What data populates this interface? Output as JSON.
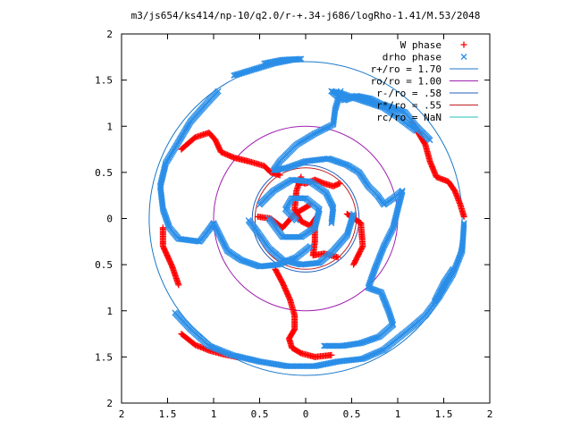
{
  "chart_data": {
    "type": "scatter",
    "title": "m3/js654/ks414/np-10/q2.0/r-+.34-j686/logRho-1.41/M.53/2048",
    "xlabel": "",
    "ylabel": "",
    "xlim": [
      -2,
      2
    ],
    "ylim": [
      -2,
      2
    ],
    "x_ticks": [
      "2",
      "1.5",
      "1",
      "0.5",
      "0",
      "0.5",
      "1",
      "1.5",
      "2"
    ],
    "y_ticks": [
      "2",
      "1.5",
      "1",
      "0.5",
      "0",
      "0.5",
      "1",
      "1.5",
      "2"
    ],
    "grid": false,
    "legend_position": "top-right",
    "point_series": [
      {
        "name": "W phase",
        "marker": "+",
        "color": "#ff0000",
        "arms": [
          [
            [
              -1.35,
              0.75
            ],
            [
              -1.2,
              0.88
            ],
            [
              -1.05,
              0.93
            ],
            [
              -0.98,
              0.85
            ],
            [
              -0.92,
              0.72
            ],
            [
              -0.78,
              0.66
            ],
            [
              -0.62,
              0.62
            ],
            [
              -0.45,
              0.57
            ],
            [
              -0.38,
              0.5
            ],
            [
              -0.28,
              0.47
            ]
          ],
          [
            [
              -0.1,
              0.4
            ],
            [
              0.0,
              0.38
            ],
            [
              0.1,
              0.42
            ],
            [
              0.2,
              0.38
            ],
            [
              0.3,
              0.35
            ],
            [
              0.37,
              0.38
            ]
          ],
          [
            [
              1.15,
              1.05
            ],
            [
              1.3,
              0.8
            ],
            [
              1.35,
              0.62
            ],
            [
              1.42,
              0.45
            ],
            [
              1.55,
              0.4
            ],
            [
              1.62,
              0.3
            ],
            [
              1.68,
              0.15
            ],
            [
              1.72,
              0.02
            ]
          ],
          [
            [
              -0.33,
              -0.55
            ],
            [
              -0.25,
              -0.7
            ],
            [
              -0.17,
              -0.88
            ],
            [
              -0.12,
              -1.05
            ],
            [
              -0.12,
              -1.2
            ],
            [
              -0.18,
              -1.3
            ],
            [
              -0.15,
              -1.4
            ],
            [
              -0.05,
              -1.46
            ],
            [
              0.1,
              -1.5
            ],
            [
              0.28,
              -1.48
            ]
          ],
          [
            [
              -1.35,
              -1.25
            ],
            [
              -1.2,
              -1.37
            ],
            [
              -1.05,
              -1.43
            ],
            [
              -0.9,
              -1.47
            ],
            [
              -0.75,
              -1.5
            ]
          ],
          [
            [
              -0.05,
              0.45
            ],
            [
              -0.1,
              0.3
            ],
            [
              -0.12,
              0.1
            ],
            [
              -0.05,
              -0.03
            ],
            [
              0.05,
              -0.08
            ],
            [
              0.12,
              0.02
            ]
          ],
          [
            [
              -0.52,
              0.02
            ],
            [
              -0.38,
              0.0
            ],
            [
              -0.25,
              -0.1
            ],
            [
              -0.12,
              0.05
            ],
            [
              0.05,
              0.15
            ]
          ],
          [
            [
              0.1,
              -0.05
            ],
            [
              0.1,
              -0.25
            ],
            [
              0.08,
              -0.4
            ],
            [
              0.2,
              -0.38
            ],
            [
              0.35,
              -0.42
            ]
          ],
          [
            [
              -1.55,
              -0.1
            ],
            [
              -1.55,
              -0.3
            ],
            [
              -1.45,
              -0.52
            ],
            [
              -1.38,
              -0.72
            ]
          ],
          [
            [
              0.45,
              0.05
            ],
            [
              0.6,
              -0.05
            ],
            [
              0.62,
              -0.3
            ],
            [
              0.52,
              -0.5
            ]
          ]
        ]
      },
      {
        "name": "drho phase",
        "marker": "x",
        "color": "#2a8ee8",
        "arms": [
          [
            [
              -0.45,
              1.68
            ],
            [
              -0.25,
              1.72
            ],
            [
              -0.05,
              1.73
            ]
          ],
          [
            [
              -0.95,
              1.38
            ],
            [
              -1.1,
              1.22
            ],
            [
              -1.25,
              1.05
            ],
            [
              -1.4,
              0.8
            ],
            [
              -1.52,
              0.6
            ],
            [
              -1.58,
              0.35
            ],
            [
              -1.55,
              0.1
            ],
            [
              -1.48,
              -0.1
            ],
            [
              -1.38,
              -0.22
            ],
            [
              -1.15,
              -0.25
            ],
            [
              -1.05,
              -0.12
            ],
            [
              -1.0,
              -0.05
            ]
          ],
          [
            [
              -0.78,
              1.55
            ],
            [
              -0.55,
              1.62
            ],
            [
              -0.35,
              1.68
            ],
            [
              -0.15,
              1.72
            ]
          ],
          [
            [
              0.38,
              1.38
            ],
            [
              0.32,
              1.18
            ],
            [
              0.3,
              1.02
            ],
            [
              0.1,
              0.92
            ],
            [
              -0.1,
              0.8
            ],
            [
              -0.28,
              0.62
            ],
            [
              -0.35,
              0.52
            ],
            [
              -0.2,
              0.55
            ],
            [
              0.0,
              0.62
            ],
            [
              0.25,
              0.65
            ],
            [
              0.45,
              0.58
            ],
            [
              0.58,
              0.5
            ],
            [
              0.68,
              0.35
            ],
            [
              0.78,
              0.25
            ],
            [
              0.85,
              0.15
            ],
            [
              0.95,
              0.22
            ],
            [
              1.05,
              0.3
            ]
          ],
          [
            [
              0.28,
              1.38
            ],
            [
              0.35,
              1.32
            ],
            [
              0.42,
              1.28
            ],
            [
              0.55,
              1.33
            ],
            [
              0.7,
              1.3
            ],
            [
              0.82,
              1.24
            ],
            [
              0.95,
              1.2
            ],
            [
              1.08,
              1.15
            ],
            [
              1.2,
              1.0
            ],
            [
              1.35,
              0.85
            ]
          ],
          [
            [
              0.28,
              1.38
            ],
            [
              0.4,
              1.35
            ],
            [
              0.55,
              1.3
            ],
            [
              0.7,
              1.25
            ],
            [
              0.85,
              1.2
            ],
            [
              1.0,
              1.1
            ],
            [
              1.2,
              0.95
            ]
          ],
          [
            [
              1.72,
              -0.05
            ],
            [
              1.7,
              -0.35
            ],
            [
              1.6,
              -0.6
            ],
            [
              1.45,
              -0.85
            ],
            [
              1.3,
              -1.05
            ],
            [
              1.15,
              -1.18
            ],
            [
              1.0,
              -1.3
            ],
            [
              0.85,
              -1.42
            ],
            [
              0.62,
              -1.52
            ],
            [
              0.35,
              -1.55
            ],
            [
              0.1,
              -1.6
            ],
            [
              -0.2,
              -1.6
            ],
            [
              -0.5,
              -1.55
            ],
            [
              -0.8,
              -1.48
            ],
            [
              -1.05,
              -1.38
            ],
            [
              -1.25,
              -1.2
            ],
            [
              -1.42,
              -1.02
            ]
          ],
          [
            [
              1.05,
              0.3
            ],
            [
              0.95,
              -0.1
            ],
            [
              0.85,
              -0.3
            ],
            [
              0.75,
              -0.55
            ],
            [
              0.68,
              -0.75
            ],
            [
              0.82,
              -0.8
            ],
            [
              0.9,
              -1.0
            ],
            [
              0.95,
              -1.15
            ],
            [
              0.8,
              -1.28
            ],
            [
              0.6,
              -1.35
            ],
            [
              0.4,
              -1.38
            ],
            [
              0.2,
              -1.38
            ]
          ],
          [
            [
              -1.0,
              -0.05
            ],
            [
              -0.95,
              -0.15
            ],
            [
              -0.85,
              -0.35
            ],
            [
              -0.7,
              -0.45
            ],
            [
              -0.5,
              -0.52
            ],
            [
              -0.3,
              -0.5
            ],
            [
              -0.1,
              -0.42
            ],
            [
              0.05,
              -0.3
            ]
          ],
          [
            [
              -0.62,
              -0.02
            ],
            [
              -0.52,
              -0.15
            ],
            [
              -0.4,
              -0.32
            ],
            [
              -0.25,
              -0.45
            ],
            [
              -0.05,
              -0.5
            ],
            [
              0.15,
              -0.48
            ],
            [
              0.3,
              -0.35
            ],
            [
              0.45,
              -0.18
            ],
            [
              0.52,
              0.05
            ]
          ],
          [
            [
              -0.5,
              0.15
            ],
            [
              -0.35,
              0.3
            ],
            [
              -0.15,
              0.42
            ],
            [
              0.05,
              0.4
            ],
            [
              0.22,
              0.28
            ],
            [
              0.3,
              0.12
            ],
            [
              0.28,
              -0.05
            ]
          ],
          [
            [
              -0.1,
              -0.02
            ],
            [
              -0.22,
              0.1
            ],
            [
              -0.15,
              0.22
            ],
            [
              0.0,
              0.22
            ],
            [
              0.15,
              0.1
            ],
            [
              0.1,
              -0.1
            ],
            [
              -0.05,
              -0.2
            ],
            [
              -0.25,
              -0.2
            ],
            [
              -0.4,
              0.0
            ]
          ],
          [
            [
              1.6,
              -0.55
            ],
            [
              1.5,
              -0.7
            ],
            [
              1.4,
              -0.9
            ]
          ]
        ]
      }
    ],
    "circle_series": [
      {
        "name": "r+/ro = 1.70",
        "radius": 1.7,
        "color": "#1a78c8"
      },
      {
        "name": "ro/ro = 1.00",
        "radius": 1.0,
        "color": "#a020b0"
      },
      {
        "name": "r-/ro = .58",
        "radius": 0.58,
        "color": "#2060c0"
      },
      {
        "name": "r*/ro = .55",
        "radius": 0.55,
        "color": "#c02020"
      },
      {
        "name": "rc/ro = NaN",
        "radius": null,
        "color": "#20c0c0"
      }
    ]
  }
}
